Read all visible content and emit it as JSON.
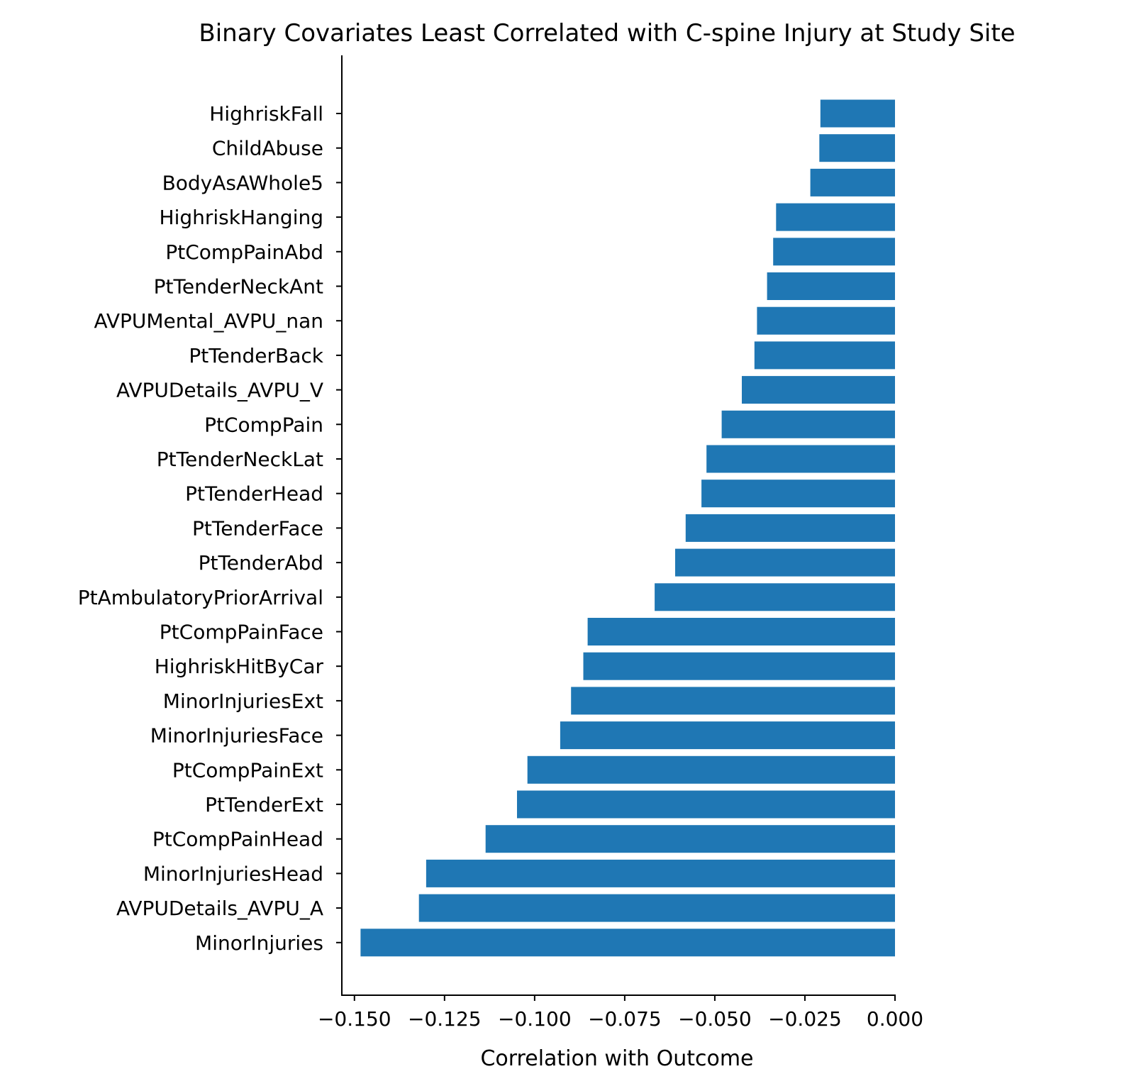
{
  "chart_data": {
    "type": "bar",
    "orientation": "horizontal",
    "title": "Binary Covariates Least Correlated with C-spine Injury at Study Site",
    "xlabel": "Correlation with Outcome",
    "ylabel": "",
    "xlim": [
      -0.1535,
      0.0
    ],
    "x_ticks": [
      -0.15,
      -0.125,
      -0.1,
      -0.075,
      -0.05,
      -0.025,
      0.0
    ],
    "x_tick_labels": [
      "−0.150",
      "−0.125",
      "−0.100",
      "−0.075",
      "−0.050",
      "−0.025",
      "0.000"
    ],
    "grid": false,
    "bar_color": "#1f77b4",
    "categories": [
      "HighriskFall",
      "ChildAbuse",
      "BodyAsAWhole5",
      "HighriskHanging",
      "PtCompPainAbd",
      "PtTenderNeckAnt",
      "AVPUMental_AVPU_nan",
      "PtTenderBack",
      "AVPUDetails_AVPU_V",
      "PtCompPain",
      "PtTenderNeckLat",
      "PtTenderHead",
      "PtTenderFace",
      "PtTenderAbd",
      "PtAmbulatoryPriorArrival",
      "PtCompPainFace",
      "HighriskHitByCar",
      "MinorInjuriesExt",
      "MinorInjuriesFace",
      "PtCompPainExt",
      "PtTenderExt",
      "PtCompPainHead",
      "MinorInjuriesHead",
      "AVPUDetails_AVPU_A",
      "MinorInjuries"
    ],
    "values": [
      -0.0207,
      -0.021,
      -0.0235,
      -0.033,
      -0.0338,
      -0.0355,
      -0.0383,
      -0.039,
      -0.0425,
      -0.0481,
      -0.0523,
      -0.0537,
      -0.0581,
      -0.061,
      -0.0667,
      -0.0853,
      -0.0865,
      -0.0899,
      -0.0929,
      -0.102,
      -0.1049,
      -0.1136,
      -0.1301,
      -0.1321,
      -0.1483
    ]
  }
}
